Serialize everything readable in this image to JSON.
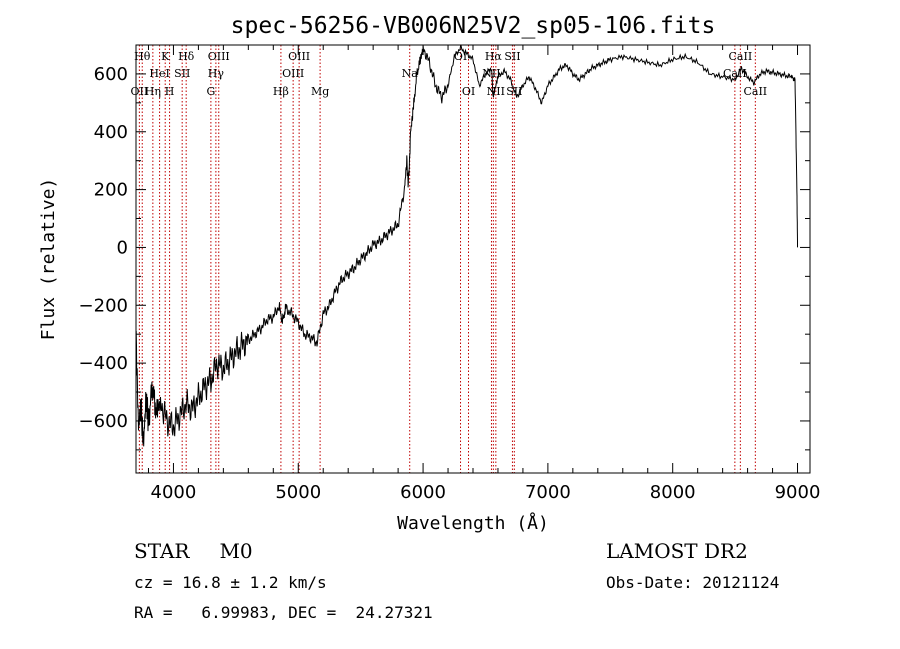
{
  "chart_data": {
    "type": "line",
    "title": "spec-56256-VB006N25V2_sp05-106.fits",
    "xlabel": "Wavelength (Å)",
    "ylabel": "Flux (relative)",
    "xlim": [
      3700,
      9100
    ],
    "ylim": [
      -780,
      700
    ],
    "xticks": [
      4000,
      5000,
      6000,
      7000,
      8000,
      9000
    ],
    "yticks": [
      -600,
      -400,
      -200,
      0,
      200,
      400,
      600
    ],
    "grid": false,
    "series": [
      {
        "x": [
          3700,
          3720,
          3740,
          3760,
          3780,
          3800,
          3830,
          3860,
          3900,
          3950,
          4000,
          4050,
          4100,
          4150,
          4200,
          4250,
          4300,
          4350,
          4400,
          4450,
          4500,
          4550,
          4600,
          4650,
          4700,
          4750,
          4800,
          4850,
          4870,
          4900,
          4950,
          5000,
          5050,
          5100,
          5150,
          5200,
          5250,
          5300,
          5350,
          5400,
          5450,
          5500,
          5550,
          5600,
          5650,
          5700,
          5750,
          5800,
          5850,
          5870,
          5880,
          5890,
          5900,
          5920,
          5950,
          5980,
          6000,
          6050,
          6100,
          6150,
          6200,
          6250,
          6300,
          6350,
          6400,
          6450,
          6500,
          6550,
          6560,
          6600,
          6650,
          6700,
          6750,
          6800,
          6850,
          6900,
          6950,
          7000,
          7050,
          7100,
          7150,
          7200,
          7250,
          7300,
          7350,
          7400,
          7450,
          7500,
          7600,
          7700,
          7800,
          7900,
          8000,
          8100,
          8200,
          8300,
          8400,
          8500,
          8550,
          8600,
          8650,
          8700,
          8750,
          8800,
          8850,
          8900,
          8950,
          8980,
          8995,
          9000
        ],
        "y": [
          -300,
          -620,
          -550,
          -680,
          -520,
          -600,
          -480,
          -560,
          -540,
          -600,
          -620,
          -580,
          -540,
          -560,
          -520,
          -480,
          -460,
          -400,
          -420,
          -390,
          -360,
          -340,
          -320,
          -300,
          -280,
          -250,
          -240,
          -200,
          -260,
          -210,
          -230,
          -260,
          -300,
          -310,
          -330,
          -230,
          -200,
          -150,
          -110,
          -90,
          -70,
          -40,
          -20,
          10,
          20,
          40,
          60,
          80,
          200,
          300,
          220,
          280,
          400,
          470,
          600,
          650,
          690,
          640,
          560,
          520,
          560,
          660,
          690,
          670,
          650,
          560,
          600,
          620,
          520,
          590,
          610,
          580,
          520,
          560,
          590,
          550,
          500,
          560,
          590,
          620,
          630,
          600,
          580,
          600,
          620,
          630,
          640,
          650,
          660,
          650,
          640,
          630,
          650,
          660,
          640,
          600,
          590,
          580,
          620,
          590,
          570,
          600,
          610,
          605,
          600,
          595,
          590,
          580,
          200,
          0
        ]
      }
    ],
    "lines": [
      {
        "x": 3727,
        "label": "OII",
        "row": 2
      },
      {
        "x": 3750,
        "label": "Hθ",
        "row": 0
      },
      {
        "x": 3835,
        "label": "Hη",
        "row": 2
      },
      {
        "x": 3889,
        "label": "HeI",
        "row": 1
      },
      {
        "x": 3934,
        "label": "K",
        "row": 0
      },
      {
        "x": 3969,
        "label": "H",
        "row": 2
      },
      {
        "x": 4070,
        "label": "SII",
        "row": 1
      },
      {
        "x": 4102,
        "label": "Hδ",
        "row": 0
      },
      {
        "x": 4300,
        "label": "G",
        "row": 2
      },
      {
        "x": 4340,
        "label": "Hγ",
        "row": 1
      },
      {
        "x": 4363,
        "label": "OIII",
        "row": 0
      },
      {
        "x": 4861,
        "label": "Hβ",
        "row": 2
      },
      {
        "x": 4959,
        "label": "OIII",
        "row": 1
      },
      {
        "x": 5007,
        "label": "OIII",
        "row": 0
      },
      {
        "x": 5175,
        "label": "Mg",
        "row": 2
      },
      {
        "x": 5893,
        "label": "Na",
        "row": 1
      },
      {
        "x": 6300,
        "label": "OI",
        "row": 0
      },
      {
        "x": 6364,
        "label": "OI",
        "row": 2
      },
      {
        "x": 6548,
        "label": "NII",
        "row": 1
      },
      {
        "x": 6563,
        "label": "Hα",
        "row": 0
      },
      {
        "x": 6583,
        "label": "NII",
        "row": 2
      },
      {
        "x": 6716,
        "label": "SII",
        "row": 0
      },
      {
        "x": 6731,
        "label": "SII",
        "row": 2
      },
      {
        "x": 8498,
        "label": "CaII",
        "row": 1
      },
      {
        "x": 8542,
        "label": "CaII",
        "row": 0
      },
      {
        "x": 8662,
        "label": "CaII",
        "row": 2
      }
    ]
  },
  "info": {
    "class": "STAR",
    "subclass": "M0",
    "survey": "LAMOST DR2",
    "velocity": "cz = 16.8 ± 1.2 km/s",
    "obs_date": "Obs-Date: 20121124",
    "coords": "RA =   6.99983, DEC =  24.27321"
  }
}
